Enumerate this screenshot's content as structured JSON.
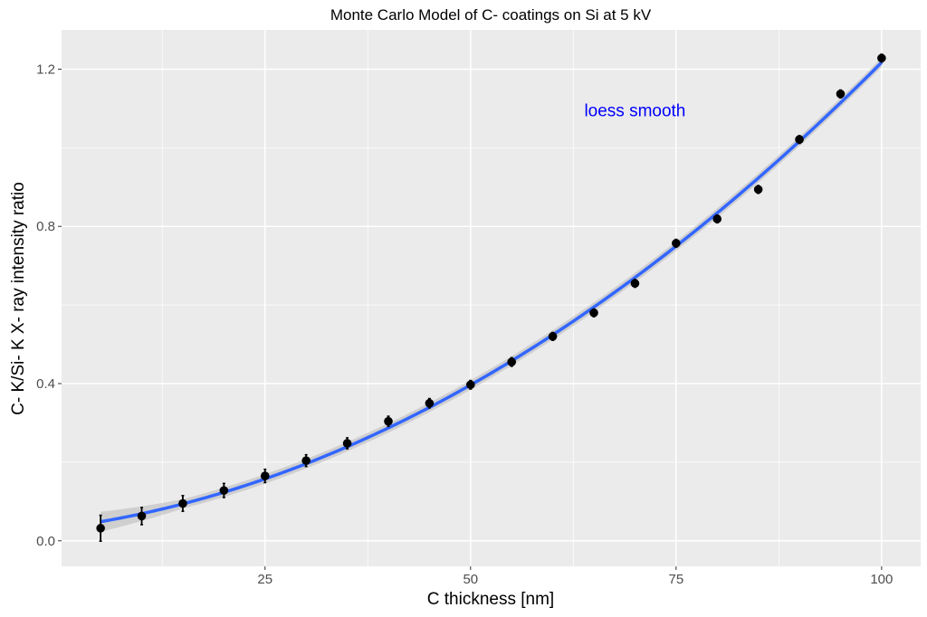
{
  "chart_data": {
    "type": "scatter",
    "title": "Monte Carlo Model of C- coatings on Si at 5 kV",
    "xlabel": "C thickness [nm]",
    "ylabel": "C- K/Si- K X- ray intensity ratio",
    "xlim": [
      0.25,
      104.75
    ],
    "ylim": [
      -0.065,
      1.3
    ],
    "xticks": [
      25,
      50,
      75,
      100
    ],
    "yticks": [
      0.0,
      0.4,
      0.8,
      1.2
    ],
    "xtick_labels": [
      "25",
      "50",
      "75",
      "100"
    ],
    "ytick_labels": [
      "0.0",
      "0.4",
      "0.8",
      "1.2"
    ],
    "grid": true,
    "x": [
      5,
      10,
      15,
      20,
      25,
      30,
      35,
      40,
      45,
      50,
      55,
      60,
      65,
      70,
      75,
      80,
      85,
      90,
      95,
      100
    ],
    "y": [
      0.032,
      0.063,
      0.095,
      0.128,
      0.165,
      0.204,
      0.248,
      0.304,
      0.35,
      0.397,
      0.455,
      0.52,
      0.58,
      0.655,
      0.757,
      0.819,
      0.894,
      1.021,
      1.137,
      1.228
    ],
    "yerr": [
      0.033,
      0.022,
      0.02,
      0.018,
      0.017,
      0.015,
      0.014,
      0.013,
      0.012,
      0.011,
      0.011,
      0.01,
      0.01,
      0.01,
      0.01,
      0.01,
      0.01,
      0.01,
      0.01,
      0.01
    ],
    "smooth": {
      "method": "loess",
      "color": "#3366ff",
      "band_color": "#bdbdbd"
    },
    "annotation": {
      "text": "loess smooth",
      "x": 70,
      "y": 1.096,
      "color": "#0000ff"
    },
    "point_color": "#000000",
    "panel_color": "#ebebeb"
  }
}
